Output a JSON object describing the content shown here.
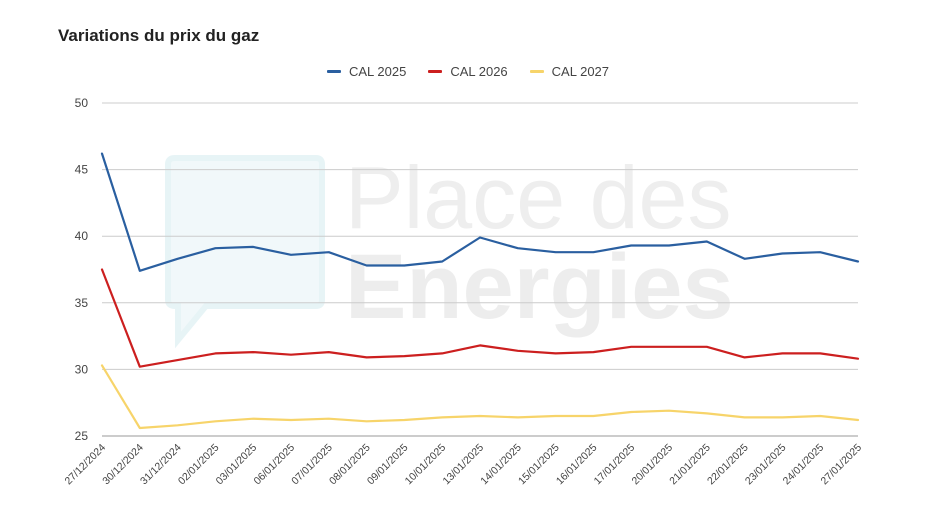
{
  "chart_data": {
    "type": "line",
    "title": "Variations du prix du gaz",
    "xlabel": "",
    "ylabel": "",
    "ylim": [
      25,
      50
    ],
    "yticks": [
      25,
      30,
      35,
      40,
      45,
      50
    ],
    "grid": true,
    "legend_position": "top-center",
    "categories": [
      "27/12/2024",
      "30/12/2024",
      "31/12/2024",
      "02/01/2025",
      "03/01/2025",
      "06/01/2025",
      "07/01/2025",
      "08/01/2025",
      "09/01/2025",
      "10/01/2025",
      "13/01/2025",
      "14/01/2025",
      "15/01/2025",
      "16/01/2025",
      "17/01/2025",
      "20/01/2025",
      "21/01/2025",
      "22/01/2025",
      "23/01/2025",
      "24/01/2025",
      "27/01/2025"
    ],
    "series": [
      {
        "name": "CAL 2025",
        "color": "#2a5fa0",
        "values": [
          46.2,
          37.4,
          38.3,
          39.1,
          39.2,
          38.6,
          38.8,
          37.8,
          37.8,
          38.1,
          39.9,
          39.1,
          38.8,
          38.8,
          39.3,
          39.3,
          39.6,
          38.3,
          38.7,
          38.8,
          38.1
        ]
      },
      {
        "name": "CAL 2026",
        "color": "#cc1f1f",
        "values": [
          37.5,
          30.2,
          30.7,
          31.2,
          31.3,
          31.1,
          31.3,
          30.9,
          31.0,
          31.2,
          31.8,
          31.4,
          31.2,
          31.3,
          31.7,
          31.7,
          31.7,
          30.9,
          31.2,
          31.2,
          30.8
        ]
      },
      {
        "name": "CAL 2027",
        "color": "#f7d46a",
        "values": [
          30.3,
          25.6,
          25.8,
          26.1,
          26.3,
          26.2,
          26.3,
          26.1,
          26.2,
          26.4,
          26.5,
          26.4,
          26.5,
          26.5,
          26.8,
          26.9,
          26.7,
          26.4,
          26.4,
          26.5,
          26.2
        ]
      }
    ]
  },
  "watermark": {
    "line1": "Place des",
    "line2": "Energies"
  }
}
